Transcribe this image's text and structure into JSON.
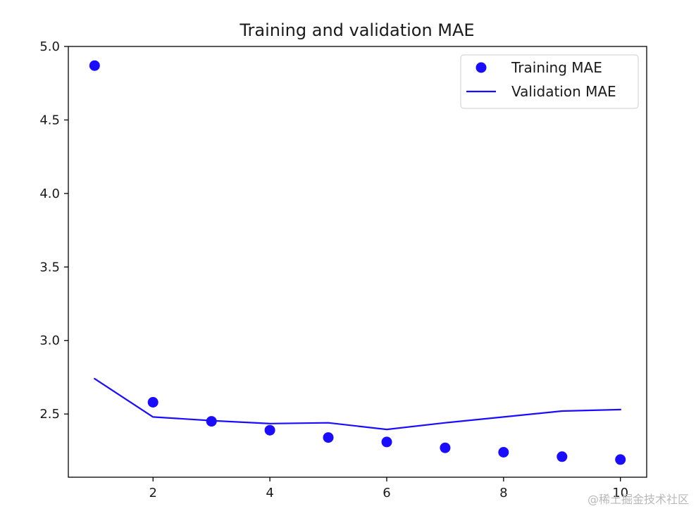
{
  "chart_data": {
    "type": "line",
    "title": "Training and validation MAE",
    "xlabel": "",
    "ylabel": "",
    "xlim": [
      0.55,
      10.45
    ],
    "ylim": [
      2.07,
      5.0
    ],
    "xticks": [
      2,
      4,
      6,
      8,
      10
    ],
    "yticks": [
      2.5,
      3.0,
      3.5,
      4.0,
      4.5,
      5.0
    ],
    "xtick_labels": [
      "2",
      "4",
      "6",
      "8",
      "10"
    ],
    "ytick_labels": [
      "2.5",
      "3.0",
      "3.5",
      "4.0",
      "4.5",
      "5.0"
    ],
    "grid": false,
    "legend_position": "upper-right",
    "series": [
      {
        "name": "Training MAE",
        "style": "markers",
        "color": "#1a0dff",
        "x": [
          1,
          2,
          3,
          4,
          5,
          6,
          7,
          8,
          9,
          10
        ],
        "y": [
          4.87,
          2.58,
          2.45,
          2.39,
          2.34,
          2.31,
          2.27,
          2.24,
          2.21,
          2.19
        ]
      },
      {
        "name": "Validation MAE",
        "style": "line",
        "color": "#1a0dff",
        "x": [
          1,
          2,
          3,
          4,
          5,
          6,
          7,
          8,
          9,
          10
        ],
        "y": [
          2.74,
          2.48,
          2.455,
          2.435,
          2.44,
          2.395,
          2.44,
          2.48,
          2.52,
          2.53
        ]
      }
    ]
  },
  "watermark": {
    "text": "@稀土掘金技术社区"
  }
}
